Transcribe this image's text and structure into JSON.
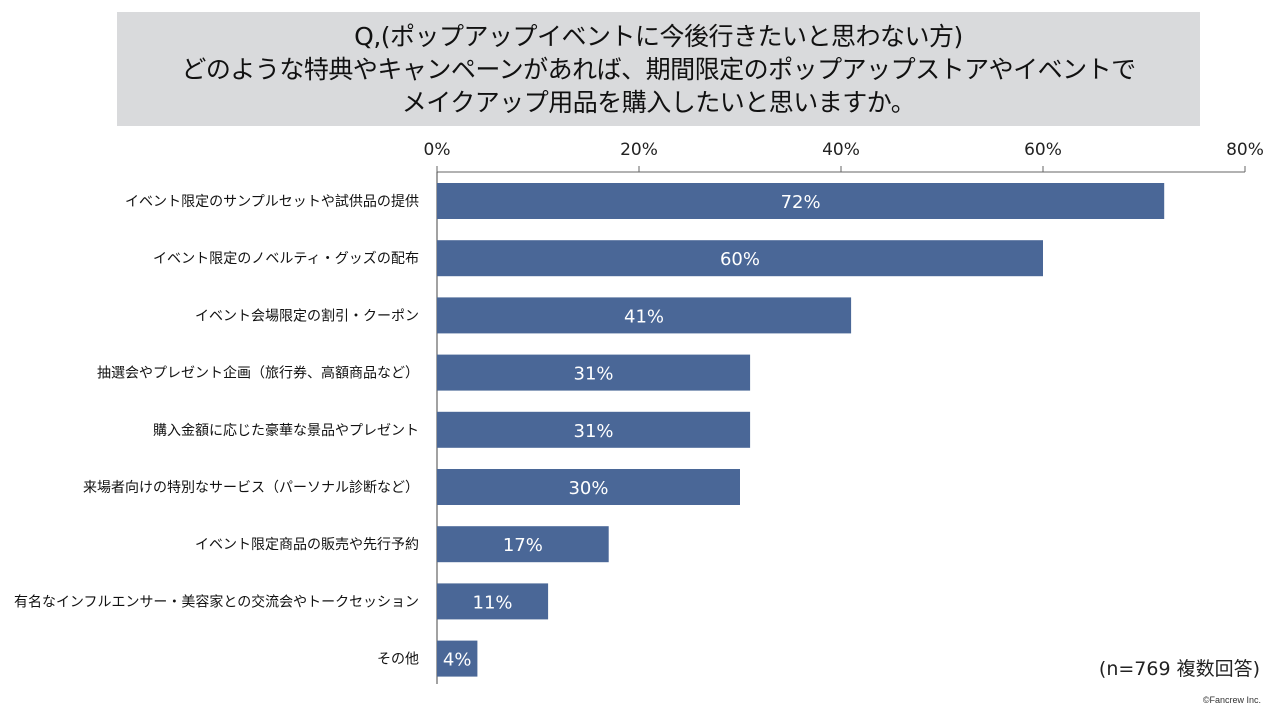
{
  "title_lines": [
    "Q,(ポップアップイベントに今後行きたいと思わない方)",
    "どのような特典やキャンペーンがあれば、期間限定のポップアップストアやイベントで",
    "メイクアップ用品を購入したいと思いますか。"
  ],
  "note": "(n=769 複数回答)",
  "copyright": "©Fancrew Inc.",
  "chart_data": {
    "type": "bar",
    "orientation": "horizontal",
    "title": "Q,(ポップアップイベントに今後行きたいと思わない方) どのような特典やキャンペーンがあれば、期間限定のポップアップストアやイベントで メイクアップ用品を購入したいと思いますか。",
    "categories": [
      "イベント限定のサンプルセットや試供品の提供",
      "イベント限定のノベルティ・グッズの配布",
      "イベント会場限定の割引・クーポン",
      "抽選会やプレゼント企画（旅行券、高額商品など）",
      "購入金額に応じた豪華な景品やプレゼント",
      "来場者向けの特別なサービス（パーソナル診断など）",
      "イベント限定商品の販売や先行予約",
      "有名なインフルエンサー・美容家との交流会やトークセッション",
      "その他"
    ],
    "values": [
      72,
      60,
      41,
      31,
      31,
      30,
      17,
      11,
      4
    ],
    "value_labels": [
      "72%",
      "60%",
      "41%",
      "31%",
      "31%",
      "30%",
      "17%",
      "11%",
      "4%"
    ],
    "xlim": [
      0,
      80
    ],
    "xticks": [
      0,
      20,
      40,
      60,
      80
    ],
    "xtick_labels": [
      "0%",
      "20%",
      "40%",
      "60%",
      "80%"
    ],
    "axis_position": "top",
    "grid": false,
    "bar_color": "#4a6797",
    "label_color": "#ffffff"
  }
}
